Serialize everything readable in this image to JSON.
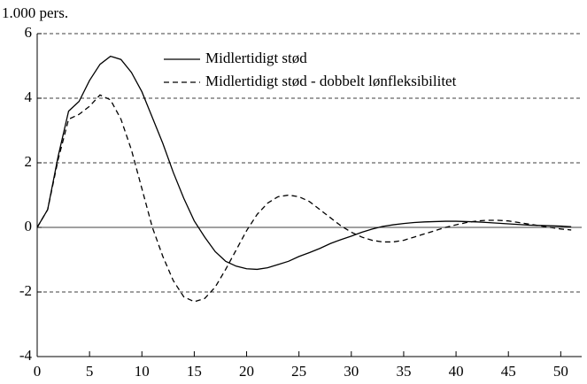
{
  "chart_data": {
    "type": "line",
    "y_label": "1.000 pers.",
    "x": [
      0,
      1,
      2,
      3,
      4,
      5,
      6,
      7,
      8,
      9,
      10,
      11,
      12,
      13,
      14,
      15,
      16,
      17,
      18,
      19,
      20,
      21,
      22,
      23,
      24,
      25,
      26,
      27,
      28,
      29,
      30,
      31,
      32,
      33,
      34,
      35,
      36,
      37,
      38,
      39,
      40,
      41,
      42,
      43,
      44,
      45,
      46,
      47,
      48,
      49,
      50,
      51
    ],
    "series": [
      {
        "name": "Midlertidigt stød",
        "color": "#000000",
        "dash": "none",
        "values": [
          0,
          0.55,
          2.2,
          3.6,
          3.9,
          4.55,
          5.05,
          5.3,
          5.2,
          4.8,
          4.2,
          3.4,
          2.6,
          1.7,
          0.9,
          0.2,
          -0.3,
          -0.75,
          -1.05,
          -1.2,
          -1.28,
          -1.3,
          -1.25,
          -1.15,
          -1.05,
          -0.9,
          -0.78,
          -0.65,
          -0.5,
          -0.38,
          -0.27,
          -0.15,
          -0.05,
          0.03,
          0.08,
          0.12,
          0.15,
          0.17,
          0.18,
          0.19,
          0.19,
          0.18,
          0.17,
          0.15,
          0.13,
          0.11,
          0.09,
          0.07,
          0.06,
          0.05,
          0.04,
          0.02
        ]
      },
      {
        "name": "Midlertidigt stød - dobbelt lønfleksibilitet",
        "color": "#000000",
        "dash": "6,4",
        "values": [
          0,
          0.55,
          2.1,
          3.35,
          3.5,
          3.75,
          4.1,
          3.95,
          3.35,
          2.4,
          1.2,
          0,
          -0.9,
          -1.65,
          -2.15,
          -2.3,
          -2.2,
          -1.85,
          -1.3,
          -0.7,
          -0.1,
          0.4,
          0.75,
          0.95,
          1.0,
          0.95,
          0.8,
          0.55,
          0.3,
          0.05,
          -0.15,
          -0.3,
          -0.4,
          -0.45,
          -0.45,
          -0.4,
          -0.3,
          -0.2,
          -0.1,
          0.0,
          0.08,
          0.15,
          0.2,
          0.22,
          0.22,
          0.2,
          0.15,
          0.1,
          0.05,
          0,
          -0.05,
          -0.08
        ]
      }
    ],
    "xlim": [
      0,
      52
    ],
    "xticks": [
      0,
      5,
      10,
      15,
      20,
      25,
      30,
      35,
      40,
      45,
      50
    ],
    "ylim": [
      -4,
      6
    ],
    "yticks": [
      -4,
      -2,
      0,
      2,
      4,
      6
    ],
    "grid": true,
    "legend": "top"
  }
}
